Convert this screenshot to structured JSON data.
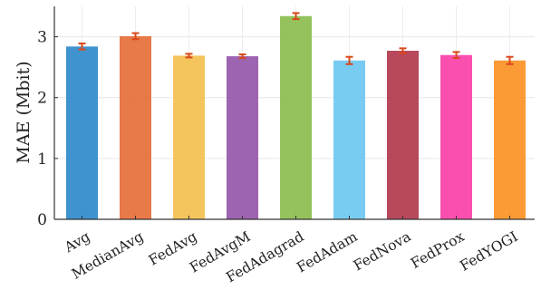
{
  "chart_data": {
    "type": "bar",
    "title": "",
    "xlabel": "",
    "ylabel": "MAE (Mbit)",
    "ylim": [
      0,
      3.5
    ],
    "yticks": [
      0,
      1,
      2,
      3
    ],
    "grid": true,
    "categories": [
      "Avg",
      "MedianAvg",
      "FedAvg",
      "FedAvgM",
      "FedAdagrad",
      "FedAdam",
      "FedNova",
      "FedProx",
      "FedYOGI"
    ],
    "values": [
      2.84,
      3.01,
      2.69,
      2.68,
      3.34,
      2.61,
      2.77,
      2.7,
      2.61
    ],
    "errors": [
      0.05,
      0.05,
      0.03,
      0.03,
      0.05,
      0.06,
      0.04,
      0.05,
      0.06
    ],
    "colors": [
      "#2f8acb",
      "#e66e3a",
      "#f4c04f",
      "#9557aa",
      "#8cbd4e",
      "#6cc8f1",
      "#b2384e",
      "#fa40a8",
      "#fa9225"
    ],
    "error_color": "#d9481c"
  }
}
